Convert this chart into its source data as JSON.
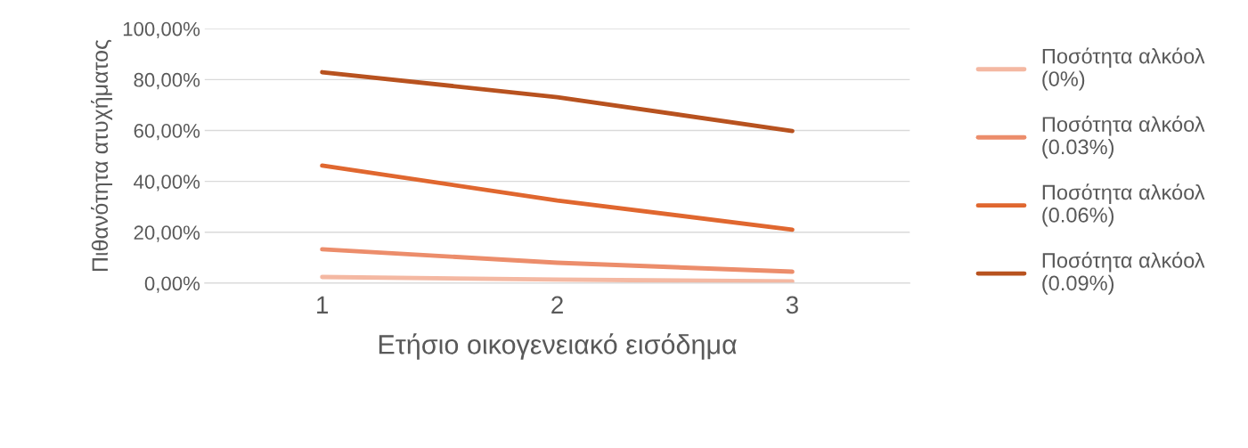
{
  "chart_data": {
    "type": "line",
    "xlabel": "Ετήσιο οικογενειακό εισόδημα",
    "ylabel": "Πιθανότητα ατυχήματος",
    "categories": [
      "1",
      "2",
      "3"
    ],
    "series": [
      {
        "name": "Ποσότητα αλκόολ (0%)",
        "color": "#f4b8a2",
        "values": [
          2.4,
          1.4,
          0.7
        ]
      },
      {
        "name": "Ποσότητα αλκόολ (0.03%)",
        "color": "#ec8d6b",
        "values": [
          13.3,
          8.0,
          4.5
        ]
      },
      {
        "name": "Ποσότητα αλκόολ (0.06%)",
        "color": "#e0672f",
        "values": [
          46.2,
          32.5,
          21.0
        ]
      },
      {
        "name": "Ποσότητα αλκόολ (0.09%)",
        "color": "#b8521f",
        "values": [
          82.9,
          73.1,
          59.8
        ]
      }
    ],
    "ylim": [
      0,
      100
    ],
    "yticks": [
      {
        "value": 0,
        "label": "0,00%"
      },
      {
        "value": 20,
        "label": "20,00%"
      },
      {
        "value": 40,
        "label": "40,00%"
      },
      {
        "value": 60,
        "label": "60,00%"
      },
      {
        "value": 80,
        "label": "80,00%"
      },
      {
        "value": 100,
        "label": "100,00%"
      }
    ],
    "grid": "y",
    "legend": "right",
    "marker": "none",
    "line_style": "solid"
  }
}
